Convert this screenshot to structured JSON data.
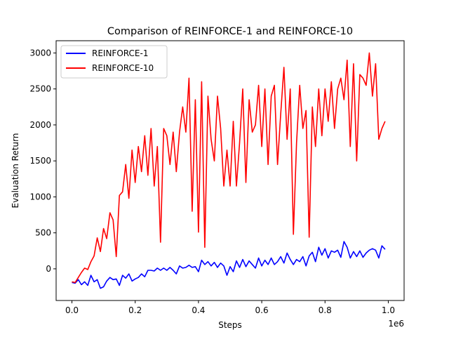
{
  "chart_data": {
    "type": "line",
    "title": "Comparison of REINFORCE-1 and REINFORCE-10",
    "xlabel": "Steps",
    "ylabel": "Evaluation Return",
    "x_offset_text": "1e6",
    "xlim": [
      -50000,
      1050000
    ],
    "ylim": [
      -440,
      3170
    ],
    "xticks": [
      0,
      200000,
      400000,
      600000,
      800000,
      1000000
    ],
    "xtick_labels": [
      "0.0",
      "0.2",
      "0.4",
      "0.6",
      "0.8",
      "1.0"
    ],
    "yticks": [
      0,
      500,
      1000,
      1500,
      2000,
      2500,
      3000
    ],
    "ytick_labels": [
      "0",
      "500",
      "1000",
      "1500",
      "2000",
      "2500",
      "3000"
    ],
    "grid": false,
    "legend_position": "upper-left",
    "series": [
      {
        "name": "REINFORCE-1",
        "color": "#0000ff",
        "x": [
          0,
          10000,
          20000,
          30000,
          40000,
          50000,
          60000,
          70000,
          80000,
          90000,
          100000,
          110000,
          120000,
          130000,
          140000,
          150000,
          160000,
          170000,
          180000,
          190000,
          200000,
          210000,
          220000,
          230000,
          240000,
          250000,
          260000,
          270000,
          280000,
          290000,
          300000,
          310000,
          320000,
          330000,
          340000,
          350000,
          360000,
          370000,
          380000,
          390000,
          400000,
          410000,
          420000,
          430000,
          440000,
          450000,
          460000,
          470000,
          480000,
          490000,
          500000,
          510000,
          520000,
          530000,
          540000,
          550000,
          560000,
          570000,
          580000,
          590000,
          600000,
          610000,
          620000,
          630000,
          640000,
          650000,
          660000,
          670000,
          680000,
          690000,
          700000,
          710000,
          720000,
          730000,
          740000,
          750000,
          760000,
          770000,
          780000,
          790000,
          800000,
          810000,
          820000,
          830000,
          840000,
          850000,
          860000,
          870000,
          880000,
          890000,
          900000,
          910000,
          920000,
          930000,
          940000,
          950000,
          960000,
          970000,
          980000,
          990000
        ],
        "values": [
          -190,
          -200,
          -150,
          -220,
          -180,
          -230,
          -90,
          -180,
          -150,
          -270,
          -250,
          -170,
          -120,
          -150,
          -140,
          -230,
          -90,
          -130,
          -70,
          -170,
          -140,
          -120,
          -70,
          -110,
          -20,
          -20,
          -30,
          10,
          -20,
          10,
          -20,
          20,
          -20,
          -70,
          40,
          10,
          20,
          50,
          20,
          30,
          -40,
          120,
          60,
          100,
          40,
          90,
          20,
          80,
          40,
          -90,
          30,
          -40,
          110,
          20,
          130,
          30,
          110,
          60,
          10,
          150,
          40,
          120,
          60,
          150,
          60,
          100,
          170,
          80,
          220,
          130,
          60,
          130,
          100,
          170,
          40,
          180,
          230,
          100,
          300,
          190,
          280,
          150,
          250,
          230,
          260,
          160,
          380,
          300,
          150,
          240,
          170,
          250,
          160,
          220,
          260,
          280,
          260,
          150,
          320,
          270
        ]
      },
      {
        "name": "REINFORCE-10",
        "color": "#ff0000",
        "x": [
          0,
          10000,
          20000,
          30000,
          40000,
          50000,
          60000,
          70000,
          80000,
          90000,
          100000,
          110000,
          120000,
          130000,
          140000,
          150000,
          160000,
          170000,
          180000,
          190000,
          200000,
          210000,
          220000,
          230000,
          240000,
          250000,
          260000,
          270000,
          280000,
          290000,
          300000,
          310000,
          320000,
          330000,
          340000,
          350000,
          360000,
          370000,
          380000,
          390000,
          400000,
          410000,
          420000,
          430000,
          440000,
          450000,
          460000,
          470000,
          480000,
          490000,
          500000,
          510000,
          520000,
          530000,
          540000,
          550000,
          560000,
          570000,
          580000,
          590000,
          600000,
          610000,
          620000,
          630000,
          640000,
          650000,
          660000,
          670000,
          680000,
          690000,
          700000,
          710000,
          720000,
          730000,
          740000,
          750000,
          760000,
          770000,
          780000,
          790000,
          800000,
          810000,
          820000,
          830000,
          840000,
          850000,
          860000,
          870000,
          880000,
          890000,
          900000,
          910000,
          920000,
          930000,
          940000,
          950000,
          960000,
          970000,
          980000,
          990000
        ],
        "values": [
          -180,
          -190,
          -120,
          -50,
          10,
          -10,
          100,
          180,
          430,
          240,
          560,
          420,
          780,
          680,
          170,
          1020,
          1070,
          1450,
          980,
          1650,
          1200,
          1700,
          1350,
          1850,
          1300,
          1950,
          1150,
          1700,
          370,
          1950,
          1850,
          1450,
          1900,
          1350,
          1900,
          2250,
          1900,
          2650,
          800,
          2350,
          510,
          2600,
          300,
          2400,
          1800,
          1500,
          2400,
          1950,
          1150,
          1650,
          1150,
          2050,
          1150,
          1750,
          2500,
          1200,
          2350,
          1900,
          2000,
          2550,
          1700,
          2500,
          1450,
          2400,
          2550,
          1450,
          2150,
          2800,
          1800,
          2500,
          480,
          1750,
          2550,
          1950,
          2200,
          440,
          2250,
          1700,
          2500,
          1850,
          2500,
          2050,
          2600,
          1950,
          2500,
          2650,
          2350,
          2900,
          1700,
          2850,
          1500,
          2700,
          2650,
          2550,
          3000,
          2400,
          2850,
          1800,
          1950,
          2050
        ]
      }
    ]
  }
}
